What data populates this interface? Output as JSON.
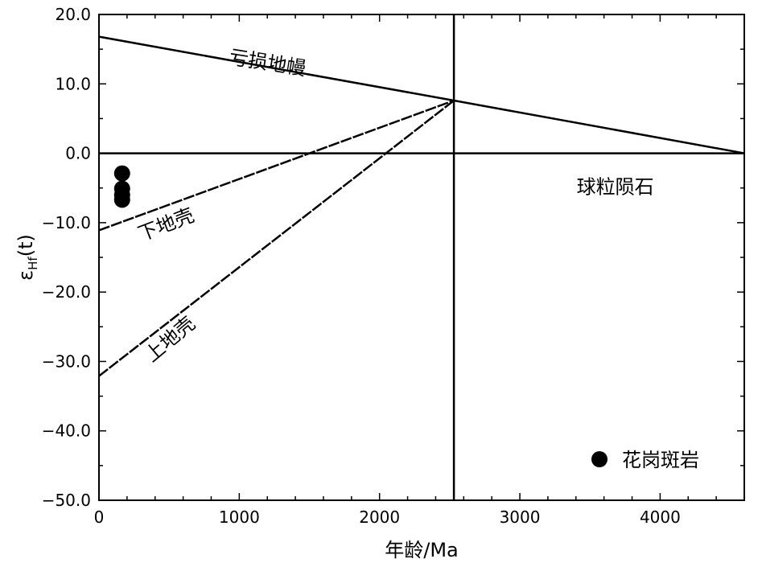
{
  "chart_data": {
    "type": "scatter",
    "title": "",
    "xlabel": "年龄/Ma",
    "ylabel_main": "ε",
    "ylabel_sub": "Hf",
    "ylabel_tail": "(t)",
    "xlim": [
      0,
      4600
    ],
    "ylim": [
      -50,
      20
    ],
    "x_ticks": [
      0,
      1000,
      2000,
      3000,
      4000
    ],
    "x_tick_labels": [
      "0",
      "1000",
      "2000",
      "3000",
      "4000"
    ],
    "y_ticks": [
      20,
      10,
      0,
      -10,
      -20,
      -30,
      -40,
      -50
    ],
    "y_tick_labels": [
      "20.0",
      "10.0",
      "0.0",
      "−10.0",
      "−20.0",
      "−30.0",
      "−40.0",
      "−50.0"
    ],
    "grid": false,
    "reference_lines": [
      {
        "name": "depleted-mantle",
        "points": [
          [
            0,
            16.8
          ],
          [
            2530,
            7.6
          ],
          [
            4600,
            0
          ]
        ],
        "style": "solid"
      },
      {
        "name": "chondrite",
        "points": [
          [
            0,
            0
          ],
          [
            4600,
            0
          ]
        ],
        "style": "solid"
      },
      {
        "name": "lower-crust",
        "points": [
          [
            0,
            -11.1
          ],
          [
            2530,
            7.6
          ]
        ],
        "style": "dashed"
      },
      {
        "name": "upper-crust",
        "points": [
          [
            0,
            -32.1
          ],
          [
            2530,
            7.6
          ]
        ],
        "style": "dashed"
      },
      {
        "name": "age-marker",
        "points": [
          [
            2530,
            -50
          ],
          [
            2530,
            20
          ]
        ],
        "style": "solid"
      }
    ],
    "annotations": [
      {
        "name": "depleted-mantle-label",
        "text": "亏损地幔",
        "x": 1200,
        "y": 12.9,
        "rotate": 9
      },
      {
        "name": "chondrite-label",
        "text": "球粒陨石",
        "x": 3680,
        "y": -5,
        "rotate": 0
      },
      {
        "name": "lower-crust-label",
        "text": "下地壳",
        "x": 480,
        "y": -10.4,
        "rotate": -21
      },
      {
        "name": "upper-crust-label",
        "text": "上地壳",
        "x": 510,
        "y": -26.9,
        "rotate": -40
      }
    ],
    "series": [
      {
        "name": "花岗斑岩",
        "marker": "circle",
        "color": "#000000",
        "points": [
          [
            165,
            -2.9
          ],
          [
            165,
            -5.1
          ],
          [
            165,
            -6.0
          ],
          [
            165,
            -6.7
          ]
        ]
      }
    ],
    "legend": {
      "position": "bottom-right",
      "label": "花岗斑岩"
    }
  }
}
